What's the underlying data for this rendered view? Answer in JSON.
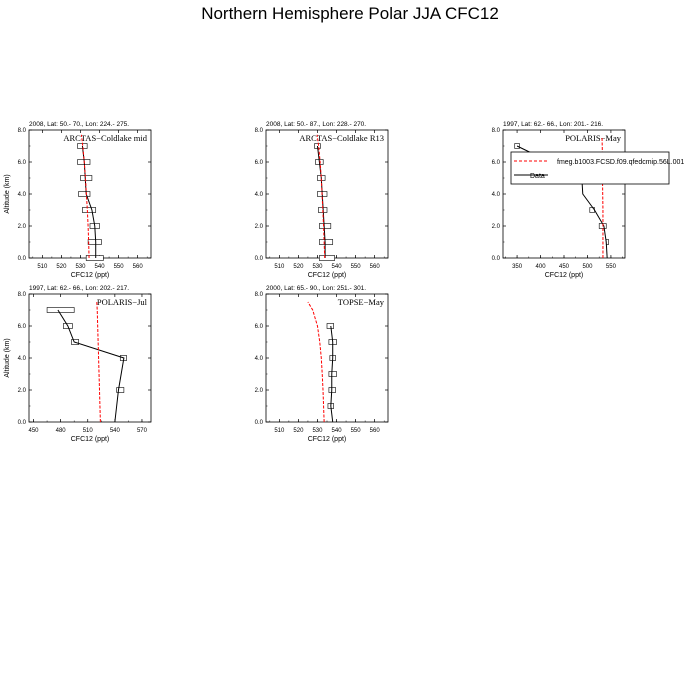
{
  "figure": {
    "title": "Northern Hemisphere Polar JJA CFC12"
  },
  "legend": {
    "items": [
      {
        "label": "fmeg.b1003.FCSD.f09.qfedcmip.56L.001",
        "color": "#ff0000",
        "dashed": true
      },
      {
        "label": "Data",
        "color": "#000000",
        "dashed": false
      }
    ]
  },
  "chart_data": [
    {
      "type": "line",
      "campaign": "ARCTAS−Coldlake mid",
      "header": "2008, Lat:  50.- 70., Lon: 224.- 275.",
      "xlabel": "CFC12 (ppt)",
      "ylabel": "Altitude (km)",
      "xlim": [
        503,
        567
      ],
      "ylim": [
        0,
        8
      ],
      "xticks": [
        510,
        520,
        530,
        540,
        550,
        560
      ],
      "yticks": [
        0,
        2,
        4,
        6,
        8
      ],
      "ytick_labels": [
        "0.0",
        "2.0",
        "4.0",
        "6.0",
        "8.0"
      ],
      "model": {
        "y": [
          0,
          1,
          2,
          3,
          4,
          5,
          6,
          7,
          7.7
        ],
        "x": [
          534.5,
          534.3,
          534.0,
          533.6,
          533.1,
          532.6,
          532.0,
          531.2,
          530.5
        ]
      },
      "data": {
        "y": [
          0,
          1,
          2,
          3,
          4,
          5,
          6,
          7
        ],
        "x": [
          538,
          538,
          537.5,
          536,
          533,
          532.5,
          532,
          531
        ]
      },
      "boxes": [
        {
          "y": 7,
          "x0": 528.5,
          "x1": 533.5
        },
        {
          "y": 6,
          "x0": 528.5,
          "x1": 535
        },
        {
          "y": 5,
          "x0": 530,
          "x1": 536
        },
        {
          "y": 4,
          "x0": 529,
          "x1": 535
        },
        {
          "y": 3,
          "x0": 531,
          "x1": 538
        },
        {
          "y": 2,
          "x0": 535,
          "x1": 540
        },
        {
          "y": 1,
          "x0": 534,
          "x1": 541
        },
        {
          "y": 0,
          "x0": 533,
          "x1": 542
        }
      ],
      "row": 0,
      "col": 0
    },
    {
      "type": "line",
      "campaign": "ARCTAS−Coldlake R13",
      "header": "2008, Lat:  50.- 87., Lon: 228.- 270.",
      "xlabel": "CFC12 (ppt)",
      "ylabel": "",
      "xlim": [
        503,
        567
      ],
      "ylim": [
        0,
        8
      ],
      "xticks": [
        510,
        520,
        530,
        540,
        550,
        560
      ],
      "yticks": [
        0,
        2,
        4,
        6,
        8
      ],
      "ytick_labels": [
        "0.0",
        "2.0",
        "4.0",
        "6.0",
        "8.0"
      ],
      "model": {
        "y": [
          0,
          1,
          2,
          3,
          4,
          5,
          6,
          7,
          7.7
        ],
        "x": [
          533.8,
          533.5,
          533.2,
          532.8,
          532.4,
          532.0,
          531.4,
          530.6,
          529.8
        ]
      },
      "data": {
        "y": [
          0,
          1,
          2,
          3,
          4,
          5,
          6,
          7
        ],
        "x": [
          534,
          534,
          533.5,
          533,
          532.5,
          532,
          531,
          530
        ]
      },
      "boxes": [
        {
          "y": 7,
          "x0": 528.5,
          "x1": 531.5
        },
        {
          "y": 6,
          "x0": 529,
          "x1": 533
        },
        {
          "y": 5,
          "x0": 530,
          "x1": 534
        },
        {
          "y": 4,
          "x0": 530,
          "x1": 535
        },
        {
          "y": 3,
          "x0": 530.5,
          "x1": 535
        },
        {
          "y": 2,
          "x0": 531,
          "x1": 537
        },
        {
          "y": 1,
          "x0": 531,
          "x1": 538
        },
        {
          "y": 0,
          "x0": 531,
          "x1": 539
        }
      ],
      "row": 0,
      "col": 1
    },
    {
      "type": "line",
      "campaign": "POLARIS−May",
      "header": "1997, Lat:  62.- 66., Lon: 201.- 216.",
      "xlabel": "CFC12 (ppt)",
      "ylabel": "",
      "xlim": [
        320,
        580
      ],
      "ylim": [
        0,
        8
      ],
      "xticks": [
        350,
        400,
        450,
        500,
        550
      ],
      "yticks": [
        0,
        2,
        4,
        6,
        8
      ],
      "ytick_labels": [
        "0.0",
        "2.0",
        "4.0",
        "6.0",
        "8.0"
      ],
      "model": {
        "y": [
          0,
          1,
          2,
          3,
          4,
          5,
          6,
          7,
          7.5
        ],
        "x": [
          533,
          533,
          533,
          533,
          532.5,
          532,
          532,
          531.5,
          531
        ]
      },
      "data": {
        "y": [
          0,
          1,
          2,
          3,
          4,
          5,
          6,
          7
        ],
        "x": [
          542,
          540,
          535,
          515,
          490,
          488,
          420,
          350
        ]
      },
      "boxes": [
        {
          "y": 7,
          "x0": 345,
          "x1": 355
        },
        {
          "y": 5,
          "x0": 470,
          "x1": 525
        },
        {
          "y": 3,
          "x0": 505,
          "x1": 515
        },
        {
          "y": 2,
          "x0": 525,
          "x1": 540
        },
        {
          "y": 1,
          "x0": 540,
          "x1": 545
        }
      ],
      "row": 0,
      "col": 2
    },
    {
      "type": "line",
      "campaign": "POLARIS−Jul",
      "header": "1997, Lat:  62.- 66., Lon: 202.- 217.",
      "xlabel": "CFC12 (ppt)",
      "ylabel": "Altitude (km)",
      "xlim": [
        445,
        580
      ],
      "ylim": [
        0,
        8
      ],
      "xticks": [
        450,
        480,
        510,
        540,
        570
      ],
      "yticks": [
        0,
        2,
        4,
        6,
        8
      ],
      "ytick_labels": [
        "0.0",
        "2.0",
        "4.0",
        "6.0",
        "8.0"
      ],
      "model": {
        "y": [
          0,
          1,
          2,
          3,
          4,
          5,
          6,
          7,
          7.5
        ],
        "x": [
          524,
          523.5,
          523,
          522.5,
          522,
          521.5,
          521,
          520.5,
          520
        ]
      },
      "data": {
        "y": [
          0,
          1,
          2,
          3,
          4,
          5,
          6,
          7
        ],
        "x": [
          540,
          542,
          544,
          547,
          550,
          495,
          488,
          477
        ]
      },
      "boxes": [
        {
          "y": 7,
          "x0": 465,
          "x1": 495
        },
        {
          "y": 6,
          "x0": 483,
          "x1": 493
        },
        {
          "y": 5,
          "x0": 492,
          "x1": 500
        },
        {
          "y": 4,
          "x0": 546,
          "x1": 553
        },
        {
          "y": 2,
          "x0": 542,
          "x1": 550
        }
      ],
      "row": 1,
      "col": 0
    },
    {
      "type": "line",
      "campaign": "TOPSE−May",
      "header": "2000, Lat:  65.- 90., Lon: 251.- 301.",
      "xlabel": "CFC12 (ppt)",
      "ylabel": "",
      "xlim": [
        503,
        567
      ],
      "ylim": [
        0,
        8
      ],
      "xticks": [
        510,
        520,
        530,
        540,
        550,
        560
      ],
      "yticks": [
        0,
        2,
        4,
        6,
        8
      ],
      "ytick_labels": [
        "0.0",
        "2.0",
        "4.0",
        "6.0",
        "8.0"
      ],
      "model": {
        "y": [
          0,
          1,
          2,
          3,
          4,
          5,
          6,
          7,
          7.5
        ],
        "x": [
          533.5,
          533.2,
          532.9,
          532.5,
          532,
          531.2,
          530,
          527.5,
          525
        ]
      },
      "data": {
        "y": [
          0,
          0.5,
          1,
          2,
          3,
          4,
          5,
          6
        ],
        "x": [
          538,
          537.5,
          537,
          537.5,
          537.5,
          538,
          538,
          537
        ]
      },
      "boxes": [
        {
          "y": 6,
          "x0": 535,
          "x1": 538.5
        },
        {
          "y": 5,
          "x0": 536,
          "x1": 540
        },
        {
          "y": 4,
          "x0": 536.5,
          "x1": 539.5
        },
        {
          "y": 3,
          "x0": 536,
          "x1": 540
        },
        {
          "y": 2,
          "x0": 536,
          "x1": 539.5
        },
        {
          "y": 1,
          "x0": 535.5,
          "x1": 538.5
        }
      ],
      "row": 1,
      "col": 1
    }
  ]
}
